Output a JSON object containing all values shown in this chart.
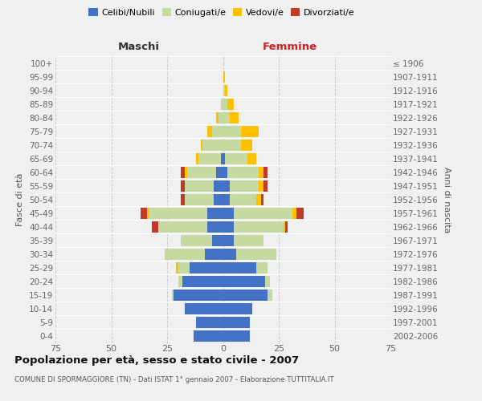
{
  "age_groups": [
    "0-4",
    "5-9",
    "10-14",
    "15-19",
    "20-24",
    "25-29",
    "30-34",
    "35-39",
    "40-44",
    "45-49",
    "50-54",
    "55-59",
    "60-64",
    "65-69",
    "70-74",
    "75-79",
    "80-84",
    "85-89",
    "90-94",
    "95-99",
    "100+"
  ],
  "birth_years": [
    "2002-2006",
    "1997-2001",
    "1992-1996",
    "1987-1991",
    "1982-1986",
    "1977-1981",
    "1972-1976",
    "1967-1971",
    "1962-1966",
    "1957-1961",
    "1952-1956",
    "1947-1951",
    "1942-1946",
    "1937-1941",
    "1932-1936",
    "1927-1931",
    "1922-1926",
    "1917-1921",
    "1912-1916",
    "1907-1911",
    "≤ 1906"
  ],
  "male": {
    "celibi": [
      13,
      12,
      17,
      22,
      18,
      15,
      8,
      5,
      7,
      7,
      4,
      4,
      3,
      1,
      0,
      0,
      0,
      0,
      0,
      0,
      0
    ],
    "coniugati": [
      0,
      0,
      0,
      1,
      2,
      5,
      18,
      14,
      22,
      26,
      13,
      13,
      13,
      10,
      9,
      5,
      2,
      1,
      0,
      0,
      0
    ],
    "vedovi": [
      0,
      0,
      0,
      0,
      0,
      1,
      0,
      0,
      0,
      1,
      0,
      0,
      1,
      1,
      1,
      2,
      1,
      0,
      0,
      0,
      0
    ],
    "divorziati": [
      0,
      0,
      0,
      0,
      0,
      0,
      0,
      0,
      3,
      3,
      2,
      2,
      2,
      0,
      0,
      0,
      0,
      0,
      0,
      0,
      0
    ]
  },
  "female": {
    "nubili": [
      12,
      12,
      13,
      20,
      19,
      15,
      6,
      5,
      5,
      5,
      3,
      3,
      2,
      1,
      0,
      0,
      0,
      0,
      0,
      0,
      0
    ],
    "coniugate": [
      0,
      0,
      0,
      2,
      2,
      5,
      18,
      13,
      22,
      26,
      12,
      13,
      14,
      10,
      8,
      8,
      3,
      2,
      1,
      0,
      0
    ],
    "vedove": [
      0,
      0,
      0,
      0,
      0,
      0,
      0,
      0,
      1,
      2,
      2,
      2,
      2,
      4,
      5,
      8,
      4,
      3,
      1,
      1,
      0
    ],
    "divorziate": [
      0,
      0,
      0,
      0,
      0,
      0,
      0,
      0,
      1,
      3,
      1,
      2,
      2,
      0,
      0,
      0,
      0,
      0,
      0,
      0,
      0
    ]
  },
  "colors": {
    "celibi": "#4472c4",
    "coniugati": "#c5d9a0",
    "vedovi": "#ffc000",
    "divorziati": "#c0392b"
  },
  "xlim": 75,
  "xticks": [
    -75,
    -50,
    -25,
    0,
    25,
    50,
    75
  ],
  "xticklabels": [
    "75",
    "50",
    "25",
    "0",
    "25",
    "50",
    "75"
  ],
  "title": "Popolazione per età, sesso e stato civile - 2007",
  "subtitle": "COMUNE DI SPORMAGGIORE (TN) - Dati ISTAT 1° gennaio 2007 - Elaborazione TUTTITALIA.IT",
  "ylabel_left": "Fasce di età",
  "ylabel_right": "Anni di nascita",
  "xlabel_left": "Maschi",
  "xlabel_right": "Femmine",
  "bg_color": "#f0f0f0",
  "grid_color": "#cccccc",
  "legend_labels": [
    "Celibi/Nubili",
    "Coniugati/e",
    "Vedovi/e",
    "Divorziati/e"
  ]
}
